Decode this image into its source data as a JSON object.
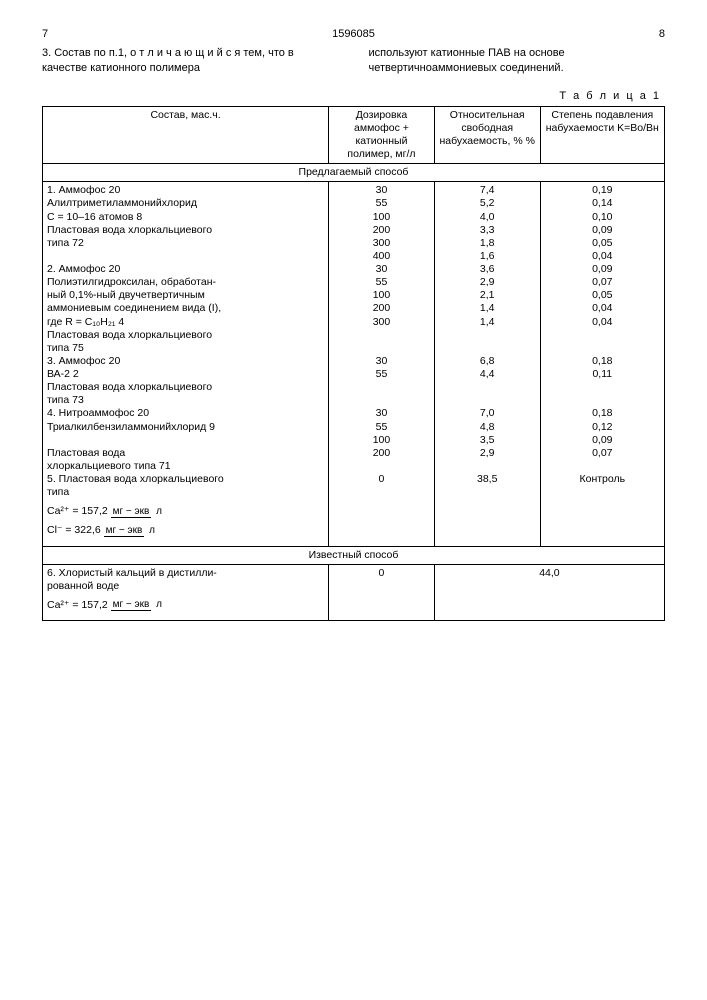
{
  "page": {
    "left_num": "7",
    "center_num": "1596085",
    "right_num": "8"
  },
  "paragraph": {
    "left": "3. Состав по п.1, о т л и ч а ю щ и й с я тем, что в качестве катионного полимера",
    "right": "используют катионные ПАВ на основе четвертичноаммониевых соединений."
  },
  "table_label": "Т а б л и ц а 1",
  "headers": {
    "c1": "Состав, мас.ч.",
    "c2": "Дозировка аммофос + катионный полимер, мг/л",
    "c3": "Относительная свободная набухаемость, % %",
    "c4": "Степень подавления набухаемости K=Bо/Bн"
  },
  "section1": "Предлагаемый способ",
  "block1": {
    "l1": "1. Аммофос   20",
    "l2": "   Алилтриметиламмонийхлорид",
    "l3": "   С = 10–16 атомов   8",
    "l4": "   Пластовая вода хлоркальциевого",
    "l5": "   типа   72",
    "r": [
      {
        "d": "30",
        "s": "7,4",
        "k": "0,19"
      },
      {
        "d": "55",
        "s": "5,2",
        "k": "0,14"
      },
      {
        "d": "100",
        "s": "4,0",
        "k": "0,10"
      },
      {
        "d": "200",
        "s": "3,3",
        "k": "0,09"
      },
      {
        "d": "300",
        "s": "1,8",
        "k": "0,05"
      },
      {
        "d": "400",
        "s": "1,6",
        "k": "0,04"
      }
    ]
  },
  "block2": {
    "l1": "2. Аммофос   20",
    "l2": "   Полиэтилгидроксилан, обработан-",
    "l3": "   ный 0,1%-ный двучетвертичным",
    "l4": "   аммониевым соединением вида (I),",
    "l5": "   где R = C₁₀H₂₁   4",
    "l6": "   Пластовая вода хлоркальциевого",
    "l7": "   типа 75",
    "r": [
      {
        "d": "30",
        "s": "3,6",
        "k": "0,09"
      },
      {
        "d": "55",
        "s": "2,9",
        "k": "0,07"
      },
      {
        "d": "100",
        "s": "2,1",
        "k": "0,05"
      },
      {
        "d": "200",
        "s": "1,4",
        "k": "0,04"
      },
      {
        "d": "300",
        "s": "1,4",
        "k": "0,04"
      }
    ]
  },
  "block3": {
    "l1": "3. Аммофос   20",
    "l2": "   ВА-2   2",
    "l3": "   Пластовая вода хлоркальциевого",
    "l4": "   типа   73",
    "r": [
      {
        "d": "30",
        "s": "6,8",
        "k": "0,18"
      },
      {
        "d": "55",
        "s": "4,4",
        "k": "0,11"
      }
    ]
  },
  "block4": {
    "l1": "4. Нитроаммофос 20",
    "l2": "   Триалкилбензиламмонийхлорид 9",
    "l3": "",
    "l4": "   Пластовая вода",
    "l5": "   хлоркальциевого типа 71",
    "r": [
      {
        "d": "30",
        "s": "7,0",
        "k": "0,18"
      },
      {
        "d": "55",
        "s": "4,8",
        "k": "0,12"
      },
      {
        "d": "100",
        "s": "3,5",
        "k": "0,09"
      },
      {
        "d": "200",
        "s": "2,9",
        "k": "0,07"
      }
    ]
  },
  "block5": {
    "l1": "5. Пластовая вода хлоркальциевого",
    "l2": "типа",
    "ca_label": "Ca²⁺ = 157,2",
    "cl_label": "Cl⁻ = 322,6",
    "frac_top": "мг − экв",
    "frac_bot": "л",
    "d": "0",
    "s": "38,5",
    "k": "Контроль"
  },
  "section2": "Известный способ",
  "block6": {
    "l1": "6. Хлористый кальций в дистилли-",
    "l2": "рованной воде",
    "ca_label": "Ca²⁺ = 157,2",
    "frac_top": "мг − экв",
    "frac_bot": "л",
    "d": "0",
    "s": "44,0"
  },
  "style": {
    "font_family": "Arial",
    "font_size_body": 11,
    "font_size_table": 10.5,
    "border_color": "#000000",
    "background": "#ffffff"
  }
}
